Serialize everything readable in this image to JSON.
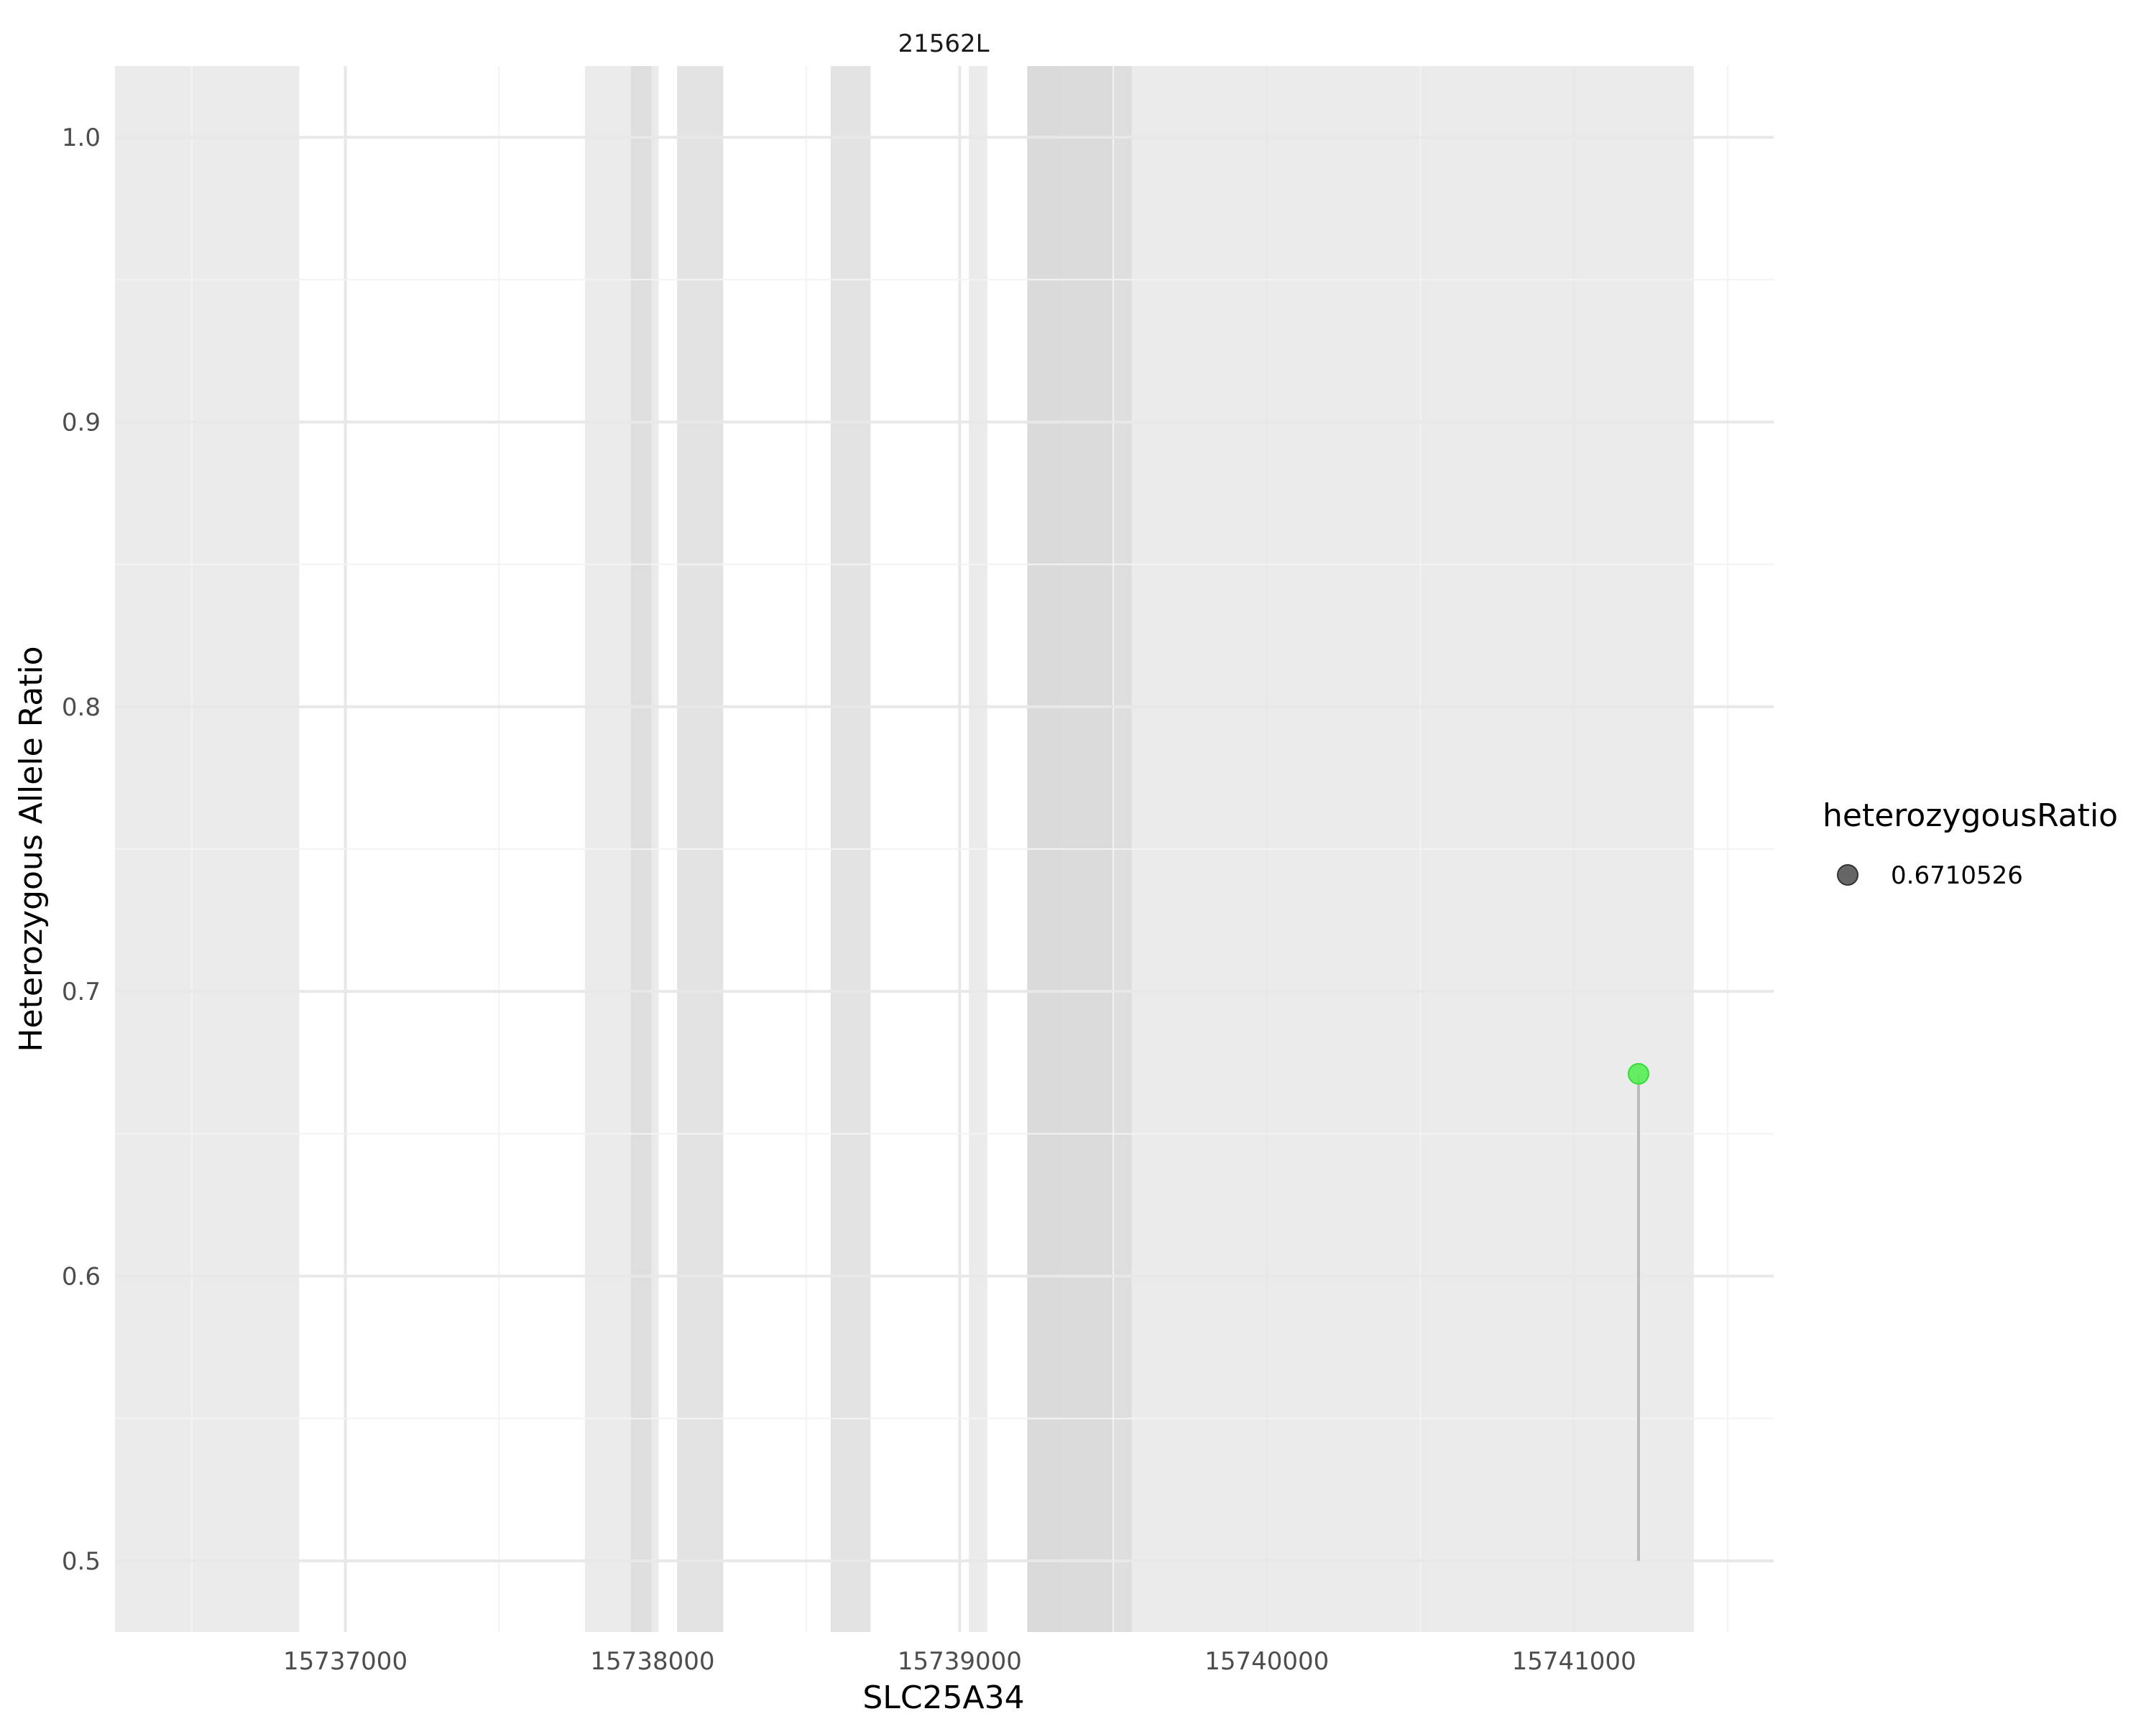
{
  "chart_data": {
    "type": "scatter",
    "title": "21562L",
    "xlabel": "SLC25A34",
    "ylabel": "Heterozygous Allele Ratio",
    "xlim": [
      15736250,
      15741650
    ],
    "ylim": [
      0.475,
      1.025
    ],
    "x_ticks": [
      15737000,
      15738000,
      15739000,
      15740000,
      15741000
    ],
    "y_ticks": [
      0.5,
      0.6,
      0.7,
      0.8,
      0.9,
      1.0
    ],
    "grid": true,
    "legend_position": "right",
    "exon_regions": [
      {
        "start": 15736250,
        "end": 15736850,
        "shade": "light"
      },
      {
        "start": 15737780,
        "end": 15738020,
        "shade": "light"
      },
      {
        "start": 15737930,
        "end": 15738000,
        "shade": "dark"
      },
      {
        "start": 15738080,
        "end": 15738230,
        "shade": "dark"
      },
      {
        "start": 15738580,
        "end": 15738710,
        "shade": "dark"
      },
      {
        "start": 15739030,
        "end": 15739090,
        "shade": "light"
      },
      {
        "start": 15739220,
        "end": 15741390,
        "shade": "light"
      },
      {
        "start": 15739220,
        "end": 15739330,
        "shade": "dark"
      },
      {
        "start": 15739220,
        "end": 15739500,
        "shade": "dark"
      },
      {
        "start": 15739220,
        "end": 15739560,
        "shade": "dark"
      }
    ],
    "series": [
      {
        "points": [
          {
            "x": 15741210,
            "y": 0.6710526
          }
        ],
        "baseline": 0.5
      }
    ],
    "legend": {
      "title": "heterozygousRatio",
      "entries": [
        "0.6710526"
      ]
    },
    "colors": {
      "point": "#55ee55",
      "point_stroke": "#33dd33",
      "stem": "#bbbbbb",
      "region_light": "#ebebeb",
      "region_dark": "#d9d9d9",
      "grid_major": "#e8e8e8",
      "grid_minor": "#f3f3f3",
      "legend_key": "#666666"
    }
  }
}
